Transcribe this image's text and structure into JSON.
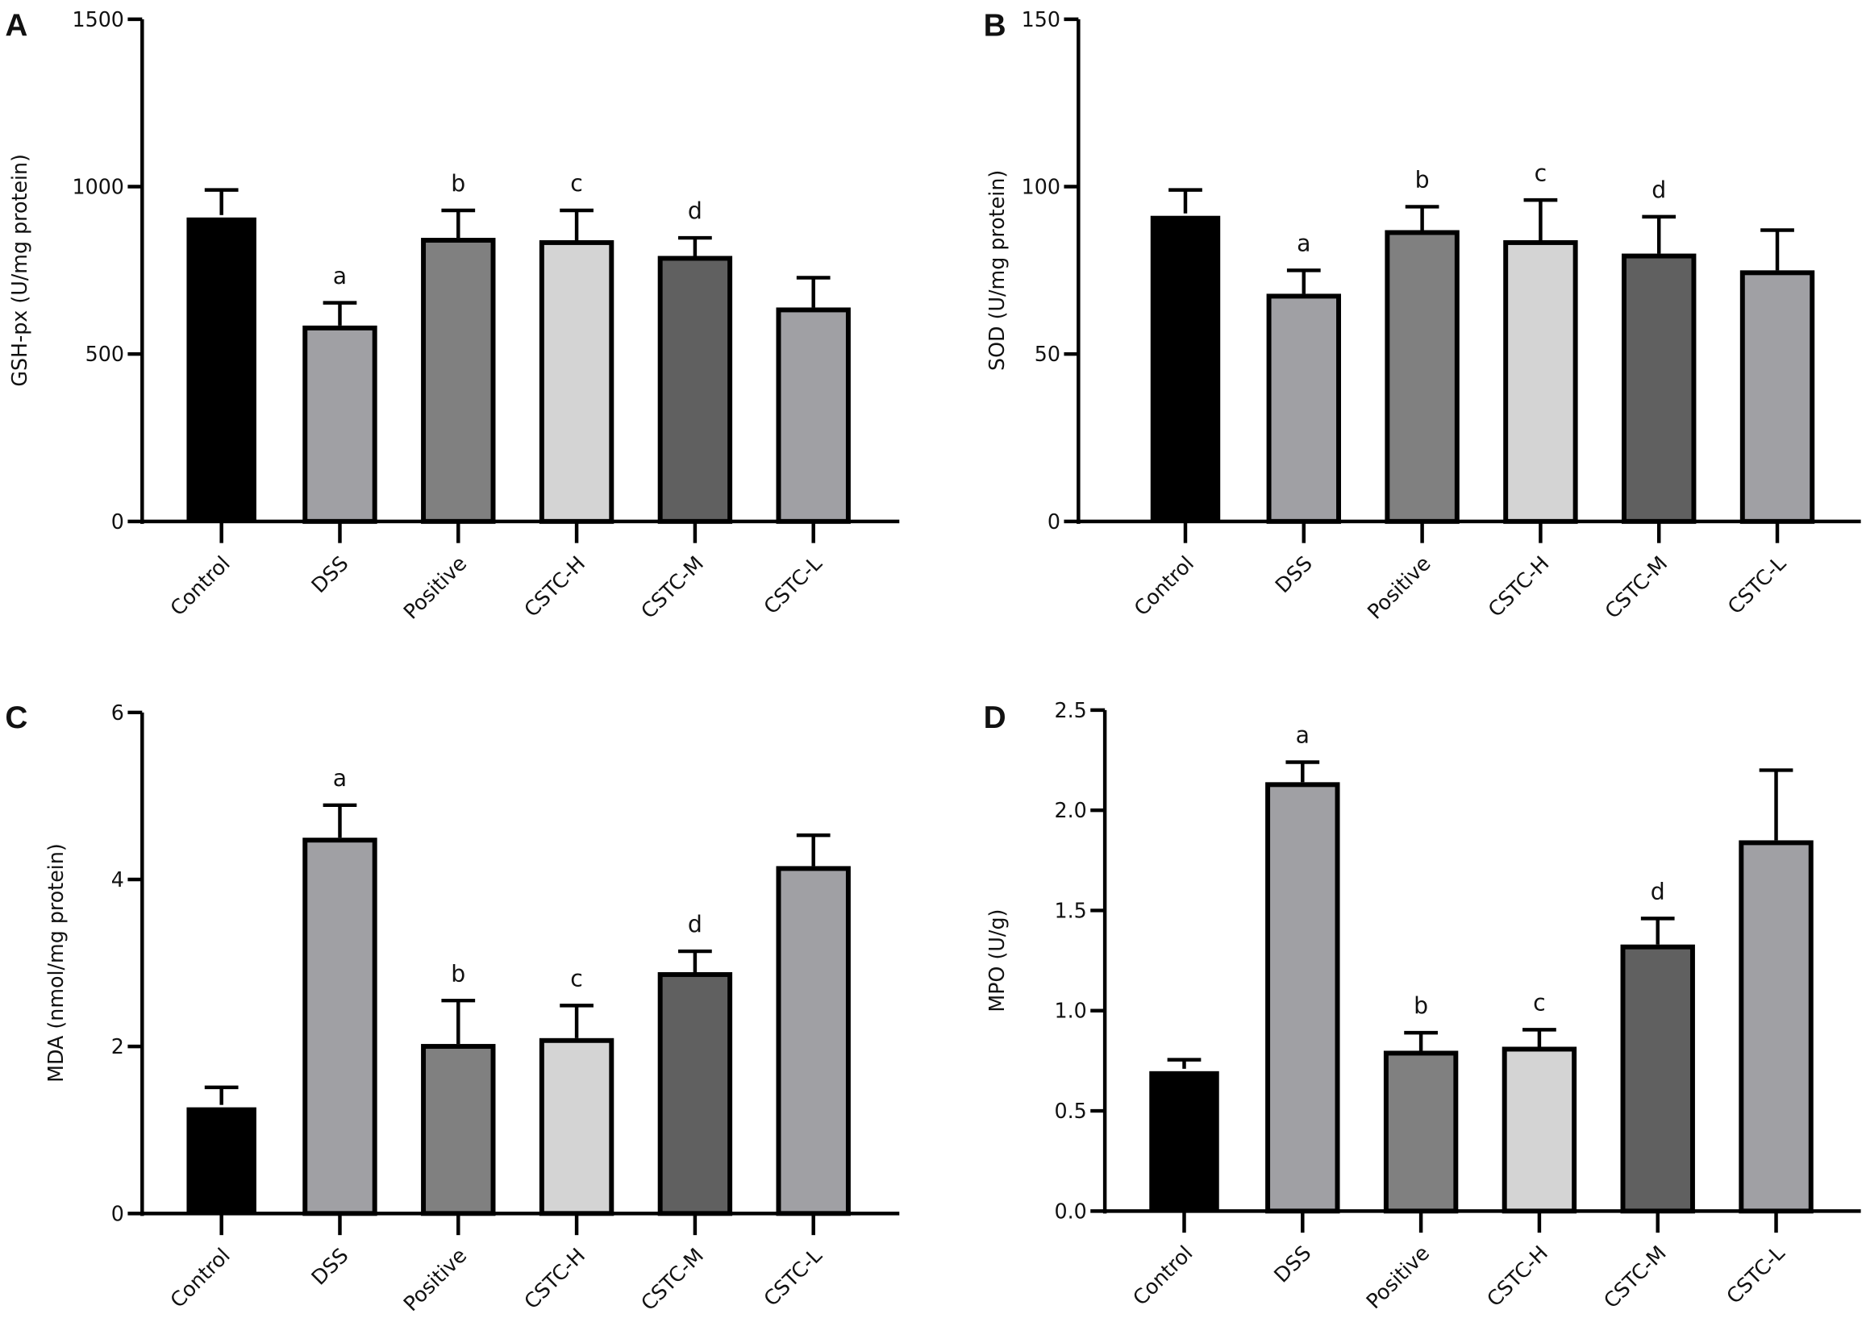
{
  "chart_data": [
    {
      "type": "bar",
      "panel": "A",
      "ylabel": "GSH-px (U/mg protein)",
      "categories": [
        "Control",
        "DSS",
        "Positive",
        "CSTC-H",
        "CSTC-M",
        "CSTC-L"
      ],
      "values": [
        915,
        585,
        847,
        840,
        793,
        639
      ],
      "errors": [
        75,
        68,
        82,
        89,
        54,
        89
      ],
      "significance": [
        "",
        "a",
        "b",
        "c",
        "d",
        ""
      ],
      "ylim": [
        0,
        1500
      ],
      "yticks": [
        0,
        500,
        1000,
        1500
      ],
      "ytick_labels": [
        "0",
        "500",
        "1000",
        "1500"
      ]
    },
    {
      "type": "bar",
      "panel": "B",
      "ylabel": "SOD (U/mg protein)",
      "categories": [
        "Control",
        "DSS",
        "Positive",
        "CSTC-H",
        "CSTC-M",
        "CSTC-L"
      ],
      "values": [
        92,
        68,
        87,
        84,
        80,
        75
      ],
      "errors": [
        7,
        7,
        7,
        12,
        11,
        12
      ],
      "significance": [
        "",
        "a",
        "b",
        "c",
        "d",
        ""
      ],
      "ylim": [
        0,
        150
      ],
      "yticks": [
        0,
        50,
        100,
        150
      ],
      "ytick_labels": [
        "0",
        "50",
        "100",
        "150"
      ]
    },
    {
      "type": "bar",
      "panel": "C",
      "ylabel": "MDA (nmol/mg protein)",
      "categories": [
        "Control",
        "DSS",
        "Positive",
        "CSTC-H",
        "CSTC-M",
        "CSTC-L"
      ],
      "values": [
        1.3,
        4.5,
        2.03,
        2.1,
        2.89,
        4.16
      ],
      "errors": [
        0.21,
        0.39,
        0.52,
        0.39,
        0.25,
        0.37
      ],
      "significance": [
        "",
        "a",
        "b",
        "c",
        "d",
        ""
      ],
      "ylim": [
        0,
        6
      ],
      "yticks": [
        0,
        2,
        4,
        6
      ],
      "ytick_labels": [
        "0",
        "2",
        "4",
        "6"
      ]
    },
    {
      "type": "bar",
      "panel": "D",
      "ylabel": "MPO (U/g)",
      "categories": [
        "Control",
        "DSS",
        "Positive",
        "CSTC-H",
        "CSTC-M",
        "CSTC-L"
      ],
      "values": [
        0.71,
        2.14,
        0.8,
        0.82,
        1.33,
        1.85
      ],
      "errors": [
        0.045,
        0.1,
        0.09,
        0.085,
        0.13,
        0.35
      ],
      "significance": [
        "",
        "a",
        "b",
        "c",
        "d",
        ""
      ],
      "ylim": [
        0,
        2.5
      ],
      "yticks": [
        0,
        0.5,
        1.0,
        1.5,
        2.0,
        2.5
      ],
      "ytick_labels": [
        "0.0",
        "0.5",
        "1.0",
        "1.5",
        "2.0",
        "2.5"
      ]
    }
  ],
  "colors": {
    "Control": "#000000",
    "DSS": "#a0a0a4",
    "Positive": "#808080",
    "CSTC-H": "#d4d4d4",
    "CSTC-M": "#606060",
    "CSTC-L": "#a0a0a4"
  }
}
